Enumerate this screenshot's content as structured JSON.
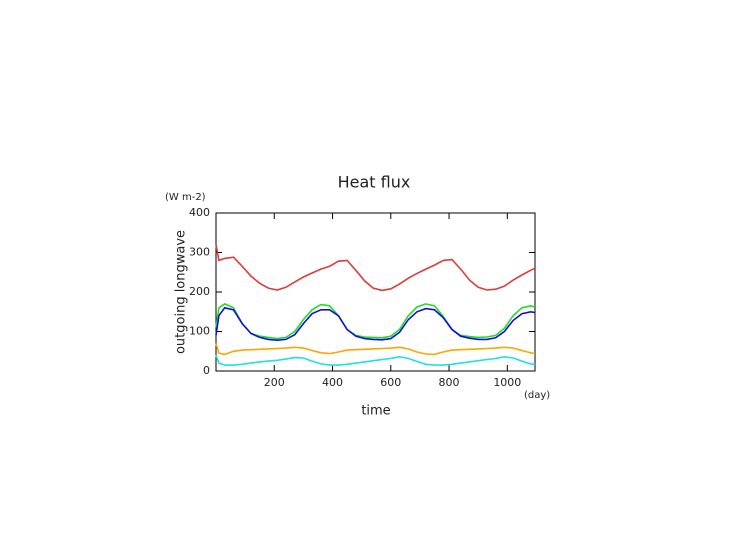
{
  "chart_data": {
    "type": "line",
    "title": "Heat flux",
    "y_label": "outgoing longwave",
    "y_unit": "(W m-2)",
    "x_label": "time",
    "x_unit": "(day)",
    "x": [
      0,
      10,
      30,
      60,
      90,
      120,
      150,
      180,
      210,
      240,
      270,
      300,
      330,
      360,
      390,
      420,
      450,
      480,
      510,
      540,
      570,
      600,
      630,
      660,
      690,
      720,
      750,
      780,
      810,
      840,
      870,
      900,
      930,
      960,
      990,
      1020,
      1050,
      1080,
      1095
    ],
    "series": [
      {
        "color": "#e03a3a",
        "values": [
          320,
          280,
          285,
          288,
          265,
          240,
          222,
          210,
          205,
          212,
          225,
          238,
          248,
          258,
          265,
          278,
          280,
          255,
          228,
          210,
          204,
          208,
          220,
          235,
          247,
          258,
          268,
          280,
          282,
          258,
          230,
          212,
          205,
          207,
          215,
          230,
          243,
          255,
          260
        ]
      },
      {
        "color": "#22dd22",
        "values": [
          110,
          160,
          170,
          160,
          120,
          95,
          88,
          85,
          82,
          85,
          100,
          130,
          155,
          168,
          165,
          140,
          105,
          90,
          86,
          85,
          84,
          88,
          105,
          140,
          162,
          170,
          165,
          138,
          105,
          90,
          87,
          85,
          86,
          90,
          108,
          140,
          160,
          165,
          162
        ]
      },
      {
        "color": "#1010dd",
        "values": [
          90,
          140,
          160,
          155,
          120,
          95,
          85,
          80,
          78,
          80,
          92,
          120,
          145,
          155,
          155,
          140,
          105,
          88,
          82,
          80,
          79,
          82,
          98,
          130,
          150,
          158,
          155,
          135,
          105,
          88,
          83,
          80,
          80,
          84,
          100,
          128,
          145,
          150,
          148
        ]
      },
      {
        "color": "#ffa500",
        "values": [
          70,
          45,
          42,
          50,
          53,
          54,
          55,
          56,
          57,
          58,
          60,
          58,
          52,
          46,
          44,
          48,
          53,
          54,
          55,
          56,
          57,
          58,
          60,
          56,
          48,
          43,
          42,
          48,
          53,
          54,
          55,
          56,
          57,
          58,
          60,
          58,
          52,
          46,
          44
        ]
      },
      {
        "color": "#22e0e0",
        "values": [
          40,
          20,
          15,
          15,
          17,
          20,
          23,
          25,
          27,
          30,
          34,
          33,
          25,
          18,
          15,
          15,
          17,
          20,
          23,
          26,
          29,
          32,
          36,
          32,
          24,
          17,
          15,
          15,
          17,
          20,
          23,
          26,
          29,
          32,
          36,
          33,
          25,
          18,
          17
        ]
      }
    ],
    "xlim": [
      0,
      1095
    ],
    "ylim": [
      0,
      400
    ],
    "xticks": [
      200,
      400,
      600,
      800,
      1000
    ],
    "yticks": [
      0,
      100,
      200,
      300,
      400
    ]
  }
}
